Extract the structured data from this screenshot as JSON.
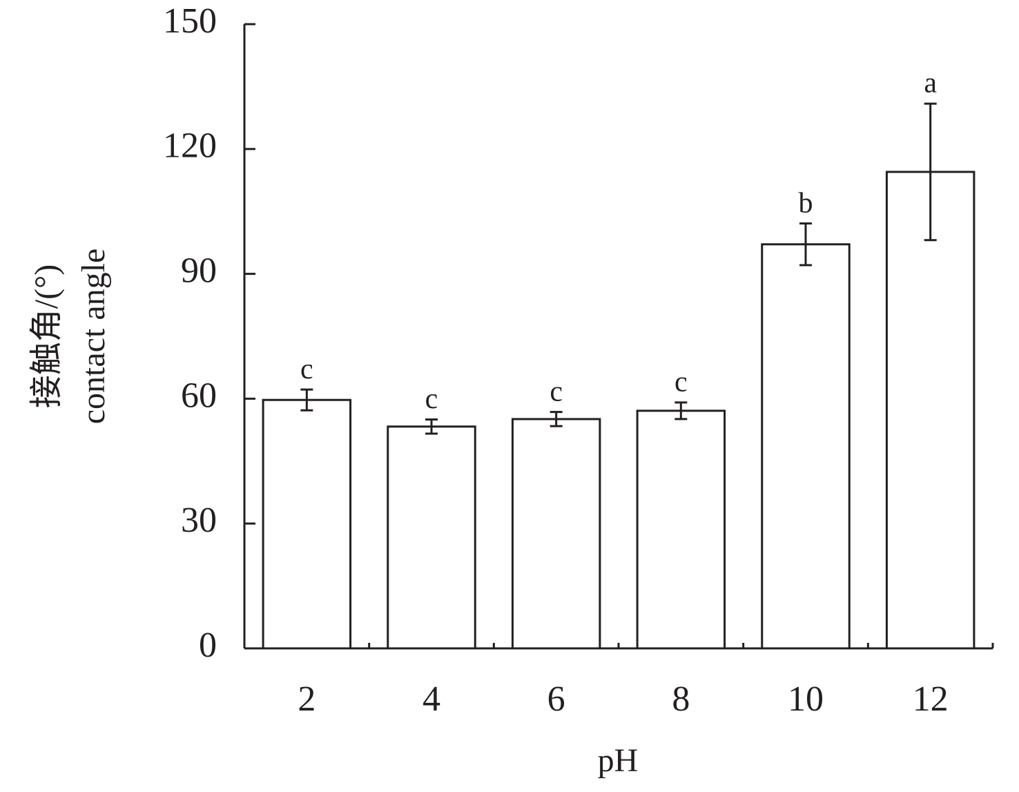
{
  "chart_data": {
    "type": "bar",
    "xlabel": "pH",
    "ylabel": [
      "接触角/(°)",
      "contact angle"
    ],
    "categories": [
      "2",
      "4",
      "6",
      "8",
      "10",
      "12"
    ],
    "values": [
      59.7,
      53.3,
      55.1,
      57.1,
      97.1,
      114.5
    ],
    "errors": [
      2.5,
      1.7,
      1.7,
      2.0,
      5.0,
      16.4
    ],
    "letters": [
      "c",
      "c",
      "c",
      "c",
      "b",
      "a"
    ],
    "color": "#ffffff",
    "ylim": [
      0,
      150
    ],
    "yticks": [
      0,
      30,
      60,
      90,
      120,
      150
    ]
  }
}
